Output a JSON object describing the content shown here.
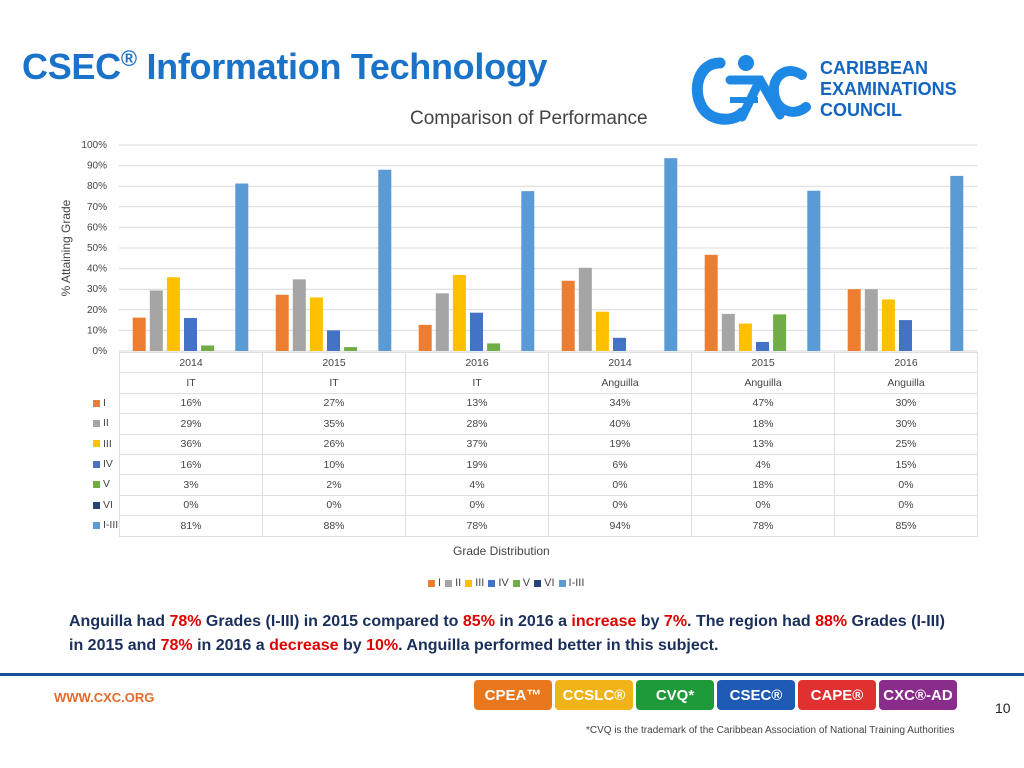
{
  "slide": {
    "title": "CSEC",
    "title_mark": "®",
    "title_rest": " Information Technology",
    "logo": {
      "text_lines": [
        "CARIBBEAN",
        "EXAMINATIONS",
        "COUNCIL"
      ],
      "icon": "cxc-logo-icon"
    },
    "summary_parts": [
      {
        "t": "Anguilla had ",
        "red": false
      },
      {
        "t": "78%",
        "red": true
      },
      {
        "t": " Grades (I-III) in 2015 compared to ",
        "red": false
      },
      {
        "t": "85%",
        "red": true
      },
      {
        "t": " in 2016 a ",
        "red": false
      },
      {
        "t": "increase",
        "red": true
      },
      {
        "t": " by ",
        "red": false
      },
      {
        "t": "7%",
        "red": true
      },
      {
        "t": ". The region had ",
        "red": false
      },
      {
        "t": "88%",
        "red": true
      },
      {
        "t": " Grades (I-III) in 2015 and ",
        "red": false
      },
      {
        "t": "78%",
        "red": true
      },
      {
        "t": " in 2016 a ",
        "red": false
      },
      {
        "t": "decrease",
        "red": true
      },
      {
        "t": " by ",
        "red": false
      },
      {
        "t": "10%",
        "red": true
      },
      {
        "t": ". Anguilla performed better in this subject.",
        "red": false
      }
    ],
    "footer": {
      "site": "WWW.CXC.ORG",
      "badges": [
        {
          "label": "CPEA™",
          "color": "#e8771e"
        },
        {
          "label": "CCSLC®",
          "color": "#f0b418"
        },
        {
          "label": "CVQ*",
          "color": "#1f9a3a"
        },
        {
          "label": "CSEC®",
          "color": "#1f5bb5"
        },
        {
          "label": "CAPE®",
          "color": "#e03030"
        },
        {
          "label": "CXC®-AD",
          "color": "#8a2c8c"
        }
      ],
      "page_number": "10",
      "footnote": "*CVQ is the trademark of the Caribbean Association of National Training Authorities"
    }
  },
  "chart_data": {
    "type": "bar",
    "title": "Comparison of Performance",
    "xlabel": "Grade Distribution",
    "ylabel": "% Attaining Grade",
    "ylim": [
      0,
      100
    ],
    "yticks": [
      "0%",
      "10%",
      "20%",
      "30%",
      "40%",
      "50%",
      "60%",
      "70%",
      "80%",
      "90%",
      "100%"
    ],
    "categories": [
      {
        "year": "2014",
        "group": "IT"
      },
      {
        "year": "2015",
        "group": "IT"
      },
      {
        "year": "2016",
        "group": "IT"
      },
      {
        "year": "2014",
        "group": "Anguilla"
      },
      {
        "year": "2015",
        "group": "Anguilla"
      },
      {
        "year": "2016",
        "group": "Anguilla"
      }
    ],
    "series": [
      {
        "name": "I",
        "color": "#ed7d31",
        "values": [
          16,
          27,
          13,
          34,
          47,
          30
        ]
      },
      {
        "name": "II",
        "color": "#a5a5a5",
        "values": [
          29,
          35,
          28,
          40,
          18,
          30
        ]
      },
      {
        "name": "III",
        "color": "#ffc000",
        "values": [
          36,
          26,
          37,
          19,
          13,
          25
        ]
      },
      {
        "name": "IV",
        "color": "#4472c4",
        "values": [
          16,
          10,
          19,
          6,
          4,
          15
        ]
      },
      {
        "name": "V",
        "color": "#70ad47",
        "values": [
          3,
          2,
          4,
          0,
          18,
          0
        ]
      },
      {
        "name": "VI",
        "color": "#264478",
        "values": [
          0,
          0,
          0,
          0,
          0,
          0
        ]
      },
      {
        "name": "I-III",
        "color": "#5b9bd5",
        "values": [
          81,
          88,
          78,
          94,
          78,
          85
        ]
      }
    ],
    "bar_heights_exact": [
      [
        16.2,
        27.3,
        12.7,
        34.1,
        46.7,
        30
      ],
      [
        29.4,
        34.8,
        28,
        40.4,
        18,
        30
      ],
      [
        35.8,
        26,
        36.9,
        19.1,
        13.3,
        25
      ],
      [
        16,
        10,
        18.6,
        6.4,
        4.4,
        15
      ],
      [
        2.7,
        1.9,
        3.7,
        0,
        17.8,
        0
      ],
      [
        0,
        0,
        0,
        0,
        0,
        0
      ],
      [
        81.3,
        88,
        77.6,
        93.6,
        77.8,
        85
      ]
    ],
    "table_values": [
      [
        "16%",
        "27%",
        "13%",
        "34%",
        "47%",
        "30%"
      ],
      [
        "29%",
        "35%",
        "28%",
        "40%",
        "18%",
        "30%"
      ],
      [
        "36%",
        "26%",
        "37%",
        "19%",
        "13%",
        "25%"
      ],
      [
        "16%",
        "10%",
        "19%",
        "6%",
        "4%",
        "15%"
      ],
      [
        "3%",
        "2%",
        "4%",
        "0%",
        "18%",
        "0%"
      ],
      [
        "0%",
        "0%",
        "0%",
        "0%",
        "0%",
        "0%"
      ],
      [
        "81%",
        "88%",
        "78%",
        "94%",
        "78%",
        "85%"
      ]
    ],
    "grid": true,
    "legend_position": "bottom"
  }
}
